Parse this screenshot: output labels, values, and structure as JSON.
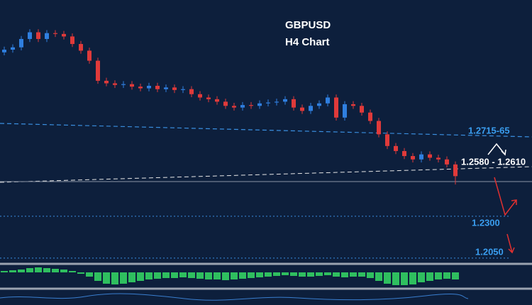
{
  "chart_data": [
    {
      "type": "candlestick",
      "title": "GBPUSD",
      "subtitle": "H4 Chart",
      "open": [
        1.328,
        1.3296,
        1.331,
        1.336,
        1.34,
        1.336,
        1.3395,
        1.339,
        1.3375,
        1.333,
        1.329,
        1.323,
        1.311,
        1.3095,
        1.3085,
        1.309,
        1.3075,
        1.3065,
        1.308,
        1.306,
        1.307,
        1.3055,
        1.306,
        1.303,
        1.301,
        1.3,
        1.2985,
        1.296,
        1.295,
        1.2965,
        1.296,
        1.2975,
        1.298,
        1.2985,
        1.3,
        1.295,
        1.293,
        1.296,
        1.2975,
        1.301,
        1.289,
        1.297,
        1.296,
        1.292,
        1.287,
        1.279,
        1.272,
        1.269,
        1.266,
        1.264,
        1.267,
        1.265,
        1.264,
        1.261
      ],
      "high": [
        1.3314,
        1.3328,
        1.3378,
        1.3418,
        1.3418,
        1.3413,
        1.3413,
        1.3408,
        1.3393,
        1.3348,
        1.3308,
        1.3248,
        1.3128,
        1.3113,
        1.3108,
        1.3108,
        1.3093,
        1.3098,
        1.3098,
        1.3088,
        1.3088,
        1.3078,
        1.3078,
        1.3048,
        1.3028,
        1.3018,
        1.3003,
        1.2978,
        1.2983,
        1.2983,
        1.2993,
        1.2998,
        1.3003,
        1.3018,
        1.3018,
        1.2968,
        1.2978,
        1.2993,
        1.3028,
        1.3028,
        1.2988,
        1.2988,
        1.2978,
        1.2938,
        1.2888,
        1.2808,
        1.2738,
        1.2708,
        1.2678,
        1.2688,
        1.2688,
        1.2668,
        1.2658,
        1.2628
      ],
      "low": [
        1.3262,
        1.3278,
        1.3292,
        1.3342,
        1.3342,
        1.3342,
        1.3372,
        1.3357,
        1.3312,
        1.3272,
        1.3212,
        1.3092,
        1.3077,
        1.3067,
        1.3067,
        1.3057,
        1.3047,
        1.3047,
        1.3042,
        1.3042,
        1.3037,
        1.3037,
        1.3012,
        1.2992,
        1.2982,
        1.2967,
        1.2942,
        1.2932,
        1.2932,
        1.2942,
        1.2942,
        1.2957,
        1.2962,
        1.2967,
        1.2932,
        1.2912,
        1.2912,
        1.2942,
        1.2957,
        1.2872,
        1.2872,
        1.2942,
        1.2902,
        1.2852,
        1.2772,
        1.2702,
        1.2672,
        1.2642,
        1.2622,
        1.2622,
        1.2632,
        1.2622,
        1.2592,
        1.249
      ],
      "close": [
        1.3296,
        1.331,
        1.336,
        1.34,
        1.336,
        1.3395,
        1.339,
        1.3375,
        1.333,
        1.329,
        1.323,
        1.311,
        1.3095,
        1.3085,
        1.309,
        1.3075,
        1.3065,
        1.308,
        1.306,
        1.307,
        1.3055,
        1.306,
        1.303,
        1.301,
        1.3,
        1.2985,
        1.296,
        1.295,
        1.2965,
        1.296,
        1.2975,
        1.298,
        1.2985,
        1.3,
        1.295,
        1.293,
        1.296,
        1.2975,
        1.301,
        1.289,
        1.297,
        1.296,
        1.292,
        1.287,
        1.279,
        1.272,
        1.269,
        1.266,
        1.264,
        1.267,
        1.265,
        1.264,
        1.261,
        1.254
      ],
      "up_color": "#2f7fe0",
      "down_color": "#e03a3a",
      "ylim": [
        1.2024,
        1.3593
      ],
      "levels": [
        {
          "value": 1.23,
          "label": "1.2300"
        },
        {
          "value": 1.205,
          "label": "1.2050"
        }
      ],
      "annotations": [
        "1.2715-65",
        "1.2580 - 1.2610"
      ]
    },
    {
      "type": "bar",
      "color": "#2fbf5f",
      "values": [
        1,
        1.5,
        2,
        3,
        3.5,
        3,
        2.5,
        2,
        1,
        -1,
        -3,
        -6,
        -8,
        -8.5,
        -8,
        -7,
        -6,
        -5,
        -4.5,
        -4,
        -4,
        -3.5,
        -4,
        -4.5,
        -5,
        -5,
        -5.5,
        -5,
        -4.5,
        -4,
        -3.5,
        -3,
        -2.5,
        -2,
        -2.5,
        -3,
        -3,
        -2.5,
        -2,
        -3,
        -3.5,
        -3,
        -3,
        -4,
        -6,
        -8,
        -9,
        -9,
        -8.5,
        -7,
        -6,
        -5,
        -4.5,
        -5
      ],
      "ylim": [
        -10,
        4
      ]
    }
  ]
}
